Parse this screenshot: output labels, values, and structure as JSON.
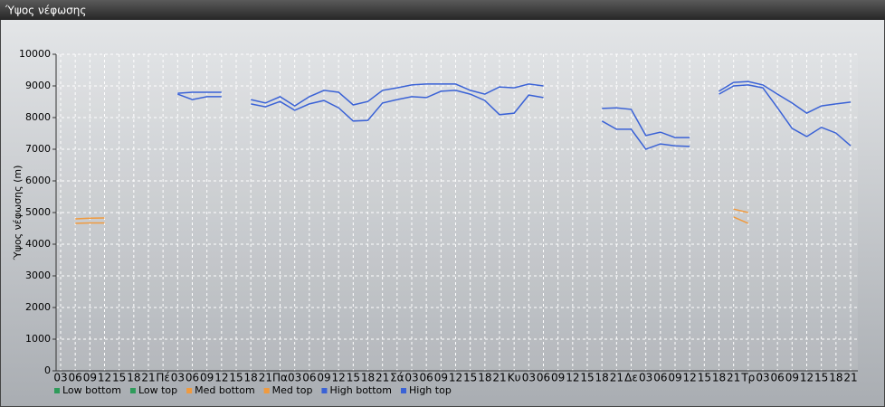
{
  "chart_data": {
    "type": "line",
    "title": "Ύψος νέφωσης",
    "y_label": "Ύψος νέφωσης (m)",
    "categories": [
      "03",
      "06",
      "09",
      "12",
      "15",
      "18",
      "21",
      "Πέ",
      "03",
      "06",
      "09",
      "12",
      "15",
      "18",
      "21",
      "Πα",
      "03",
      "06",
      "09",
      "12",
      "15",
      "18",
      "21",
      "Σά",
      "03",
      "06",
      "09",
      "12",
      "15",
      "18",
      "21",
      "Κυ",
      "03",
      "06",
      "09",
      "12",
      "15",
      "18",
      "21",
      "Δε",
      "03",
      "06",
      "09",
      "12",
      "15",
      "18",
      "21",
      "Τρ",
      "03",
      "06",
      "09",
      "12",
      "15",
      "18",
      "21"
    ],
    "ylim": [
      0,
      10000
    ],
    "yticks": [
      0,
      1000,
      2000,
      3000,
      4000,
      5000,
      6000,
      7000,
      8000,
      9000,
      10000
    ],
    "grid": true,
    "series": [
      {
        "name": "Low bottom",
        "color": "#2e9b5a",
        "values": [
          null,
          null,
          null,
          null,
          null,
          null,
          null,
          null,
          null,
          null,
          null,
          null,
          null,
          null,
          null,
          null,
          null,
          null,
          null,
          null,
          null,
          null,
          null,
          null,
          null,
          null,
          null,
          null,
          null,
          null,
          null,
          null,
          null,
          null,
          null,
          null,
          null,
          null,
          null,
          null,
          null,
          null,
          null,
          null,
          null,
          null,
          null,
          null,
          null,
          null,
          null,
          null,
          null,
          null,
          null
        ]
      },
      {
        "name": "Low top",
        "color": "#2e9b5a",
        "values": [
          null,
          null,
          null,
          null,
          null,
          null,
          null,
          null,
          null,
          null,
          null,
          null,
          null,
          null,
          null,
          null,
          null,
          null,
          null,
          null,
          null,
          null,
          null,
          null,
          null,
          null,
          null,
          null,
          null,
          null,
          null,
          null,
          null,
          null,
          null,
          null,
          null,
          null,
          null,
          null,
          null,
          null,
          null,
          null,
          null,
          null,
          null,
          null,
          null,
          null,
          null,
          null,
          null,
          null,
          null
        ]
      },
      {
        "name": "Med bottom",
        "color": "#f09a3e",
        "values": [
          null,
          4660,
          4670,
          4670,
          null,
          null,
          null,
          null,
          null,
          null,
          null,
          null,
          null,
          null,
          null,
          null,
          null,
          null,
          null,
          null,
          null,
          null,
          null,
          null,
          null,
          null,
          null,
          null,
          null,
          null,
          null,
          null,
          null,
          null,
          null,
          null,
          null,
          null,
          null,
          null,
          null,
          null,
          null,
          null,
          null,
          null,
          4860,
          4660,
          null,
          null,
          null,
          null,
          null,
          null,
          null
        ]
      },
      {
        "name": "Med top",
        "color": "#f09a3e",
        "values": [
          null,
          4800,
          4820,
          4830,
          null,
          null,
          null,
          null,
          null,
          null,
          null,
          null,
          null,
          null,
          null,
          null,
          null,
          null,
          null,
          null,
          null,
          null,
          null,
          null,
          null,
          null,
          null,
          null,
          null,
          null,
          null,
          null,
          null,
          null,
          null,
          null,
          null,
          null,
          null,
          null,
          null,
          null,
          null,
          null,
          null,
          null,
          5110,
          5000,
          null,
          null,
          null,
          null,
          null,
          null,
          null
        ]
      },
      {
        "name": "High bottom",
        "color": "#3a62d6",
        "values": [
          null,
          null,
          null,
          null,
          null,
          null,
          null,
          null,
          8740,
          8570,
          8660,
          8660,
          null,
          8430,
          8340,
          8510,
          8230,
          8430,
          8540,
          8310,
          7890,
          7910,
          8460,
          8570,
          8660,
          8630,
          8830,
          8860,
          8740,
          8540,
          8090,
          8140,
          8710,
          8630,
          null,
          null,
          null,
          7890,
          7630,
          7630,
          7000,
          7170,
          7110,
          7090,
          null,
          8740,
          9000,
          9030,
          8940,
          8310,
          7660,
          7400,
          7690,
          7510,
          7110
        ]
      },
      {
        "name": "High top",
        "color": "#3a62d6",
        "values": [
          null,
          null,
          null,
          null,
          null,
          null,
          null,
          null,
          8770,
          8800,
          8800,
          8800,
          null,
          8570,
          8460,
          8660,
          8370,
          8660,
          8860,
          8800,
          8400,
          8510,
          8860,
          8940,
          9030,
          9060,
          9060,
          9060,
          8860,
          8740,
          8970,
          8940,
          9060,
          9000,
          null,
          null,
          null,
          8290,
          8310,
          8260,
          7430,
          7540,
          7370,
          7370,
          null,
          8830,
          9110,
          9140,
          9030,
          8740,
          8460,
          8140,
          8370,
          8430,
          8490
        ]
      }
    ]
  }
}
